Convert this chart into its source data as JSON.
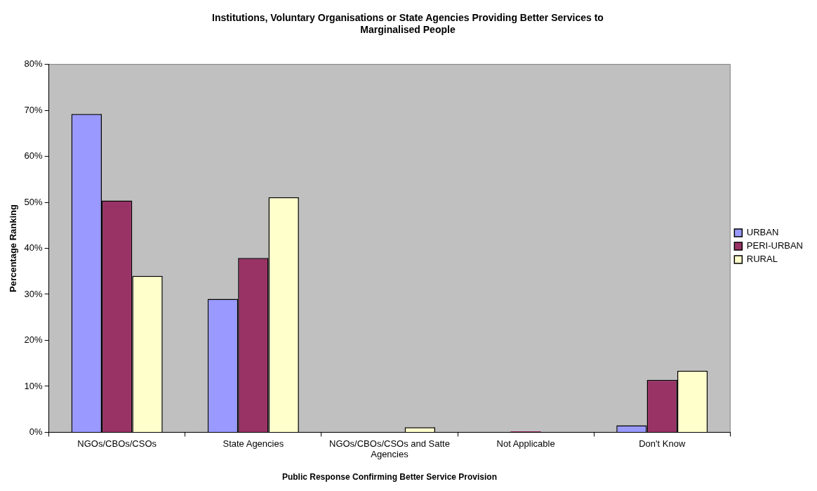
{
  "chart_data": {
    "type": "bar",
    "title": "Institutions, Voluntary Organisations or State Agencies Providing Better Services to Marginalised People",
    "xlabel": "Public Response Confirming Better Service Provision",
    "ylabel": "Percentage Ranking",
    "categories": [
      "NGOs/CBOs/CSOs",
      "State Agencies",
      "NGOs/CBOs/CSOs and Satte Agencies",
      "Not Applicable",
      "Don't Know"
    ],
    "series": [
      {
        "name": "URBAN",
        "color": "#9999ff",
        "values": [
          69.2,
          29.0,
          0,
          0,
          1.5
        ]
      },
      {
        "name": "PERI-URBAN",
        "color": "#993366",
        "values": [
          50.4,
          37.9,
          0,
          0.2,
          11.4
        ]
      },
      {
        "name": "RURAL",
        "color": "#ffffcc",
        "values": [
          34.0,
          51.1,
          1.1,
          0,
          13.4
        ]
      }
    ],
    "ylim": [
      0,
      80
    ],
    "yticks": [
      {
        "value": 0,
        "label": "0%"
      },
      {
        "value": 10,
        "label": "10%"
      },
      {
        "value": 20,
        "label": "20%"
      },
      {
        "value": 30,
        "label": "30%"
      },
      {
        "value": 40,
        "label": "40%"
      },
      {
        "value": 50,
        "label": "50%"
      },
      {
        "value": 60,
        "label": "60%"
      },
      {
        "value": 70,
        "label": "70%"
      },
      {
        "value": 80,
        "label": "80%"
      }
    ],
    "grid": false,
    "legend": "right"
  }
}
